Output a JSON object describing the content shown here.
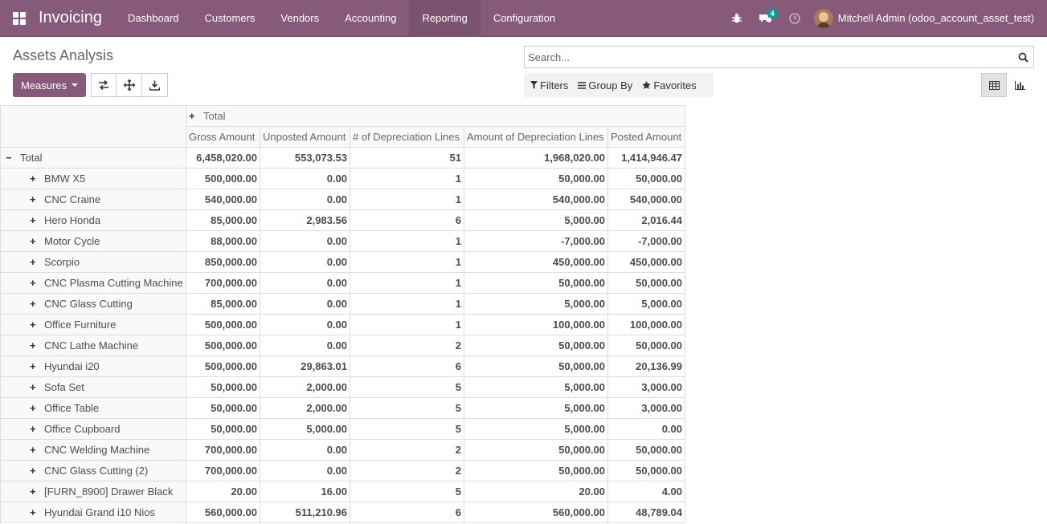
{
  "app": {
    "name": "Invoicing",
    "menu": [
      "Dashboard",
      "Customers",
      "Vendors",
      "Accounting",
      "Reporting",
      "Configuration"
    ],
    "active_menu": "Reporting",
    "messages_badge": "4",
    "user": "Mitchell Admin (odoo_account_asset_test)"
  },
  "page": {
    "title": "Assets Analysis",
    "search_placeholder": "Search...",
    "measures_label": "Measures",
    "filters_label": "Filters",
    "groupby_label": "Group By",
    "favorites_label": "Favorites"
  },
  "pivot": {
    "col_total_label": "Total",
    "measures": [
      "Gross Amount",
      "Unposted Amount",
      "# of Depreciation Lines",
      "Amount of Depreciation Lines",
      "Posted Amount"
    ],
    "total_row": {
      "label": "Total",
      "values": [
        "6,458,020.00",
        "553,073.53",
        "51",
        "1,968,020.00",
        "1,414,946.47"
      ]
    },
    "rows": [
      {
        "label": "BMW X5",
        "values": [
          "500,000.00",
          "0.00",
          "1",
          "50,000.00",
          "50,000.00"
        ]
      },
      {
        "label": "CNC Craine",
        "values": [
          "540,000.00",
          "0.00",
          "1",
          "540,000.00",
          "540,000.00"
        ]
      },
      {
        "label": "Hero Honda",
        "values": [
          "85,000.00",
          "2,983.56",
          "6",
          "5,000.00",
          "2,016.44"
        ]
      },
      {
        "label": "Motor Cycle",
        "values": [
          "88,000.00",
          "0.00",
          "1",
          "-7,000.00",
          "-7,000.00"
        ]
      },
      {
        "label": "Scorpio",
        "values": [
          "850,000.00",
          "0.00",
          "1",
          "450,000.00",
          "450,000.00"
        ]
      },
      {
        "label": "CNC Plasma Cutting Machine",
        "values": [
          "700,000.00",
          "0.00",
          "1",
          "50,000.00",
          "50,000.00"
        ]
      },
      {
        "label": "CNC Glass Cutting",
        "values": [
          "85,000.00",
          "0.00",
          "1",
          "5,000.00",
          "5,000.00"
        ]
      },
      {
        "label": "Office Furniture",
        "values": [
          "500,000.00",
          "0.00",
          "1",
          "100,000.00",
          "100,000.00"
        ]
      },
      {
        "label": "CNC Lathe Machine",
        "values": [
          "500,000.00",
          "0.00",
          "2",
          "50,000.00",
          "50,000.00"
        ]
      },
      {
        "label": "Hyundai i20",
        "values": [
          "500,000.00",
          "29,863.01",
          "6",
          "50,000.00",
          "20,136.99"
        ]
      },
      {
        "label": "Sofa Set",
        "values": [
          "50,000.00",
          "2,000.00",
          "5",
          "5,000.00",
          "3,000.00"
        ]
      },
      {
        "label": "Office Table",
        "values": [
          "50,000.00",
          "2,000.00",
          "5",
          "5,000.00",
          "3,000.00"
        ]
      },
      {
        "label": "Office Cupboard",
        "values": [
          "50,000.00",
          "5,000.00",
          "5",
          "5,000.00",
          "0.00"
        ]
      },
      {
        "label": "CNC Welding Machine",
        "values": [
          "700,000.00",
          "0.00",
          "2",
          "50,000.00",
          "50,000.00"
        ]
      },
      {
        "label": "CNC Glass Cutting (2)",
        "values": [
          "700,000.00",
          "0.00",
          "2",
          "50,000.00",
          "50,000.00"
        ]
      },
      {
        "label": "[FURN_8900] Drawer Black",
        "values": [
          "20.00",
          "16.00",
          "5",
          "20.00",
          "4.00"
        ]
      },
      {
        "label": "Hyundai Grand i10 Nios",
        "values": [
          "560,000.00",
          "511,210.96",
          "6",
          "560,000.00",
          "48,789.04"
        ]
      }
    ]
  }
}
